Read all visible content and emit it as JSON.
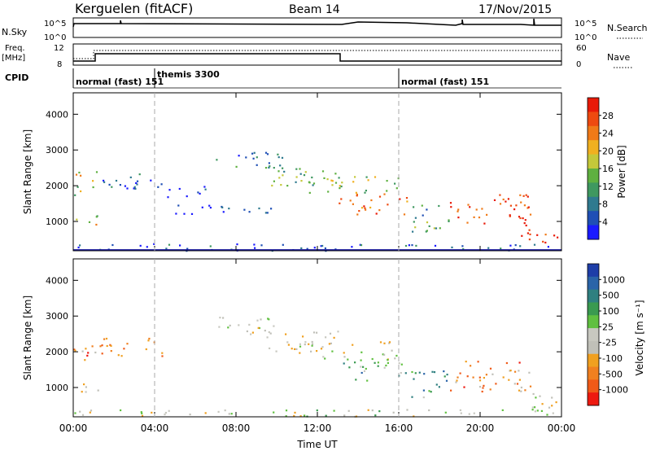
{
  "header": {
    "station": "Kerguelen (fitACF)",
    "beam": "Beam 14",
    "date": "17/Nov/2015"
  },
  "panels": {
    "nsky": {
      "label": "N.Sky",
      "ticks": [
        "10^5",
        "10^0"
      ],
      "right_label": "N.Search",
      "right_ticks": [
        "10^5",
        "10^0"
      ]
    },
    "freq": {
      "label_line1": "Freq.",
      "label_line2": "[MHz]",
      "ticks": [
        "12",
        "8"
      ],
      "right_label": "Nave",
      "right_ticks": [
        "60",
        "0"
      ]
    },
    "cpid": {
      "label": "CPID",
      "segments": [
        {
          "name": "normal (fast) 151",
          "start": 0.0,
          "end": 4.0
        },
        {
          "name": "themis 3300",
          "start": 4.0,
          "end": 16.0
        },
        {
          "name": "normal (fast) 151",
          "start": 16.0,
          "end": 24.0
        }
      ]
    }
  },
  "xaxis": {
    "label": "Time UT",
    "range": [
      0,
      24
    ],
    "tick_labels": [
      "00:00",
      "04:00",
      "08:00",
      "12:00",
      "16:00",
      "20:00",
      "00:00"
    ],
    "tick_hours": [
      0,
      4,
      8,
      12,
      16,
      20,
      24
    ],
    "dashed_markers": [
      4,
      16
    ]
  },
  "chart_data": [
    {
      "type": "heatmap",
      "name": "Power",
      "ylabel": "Slant Range [km]",
      "xlabel": "",
      "ylim": [
        180,
        4600
      ],
      "yticks": [
        1000,
        2000,
        3000,
        4000
      ],
      "colorbar": {
        "label": "Power [dB]",
        "ticks": [
          4,
          8,
          12,
          16,
          20,
          24,
          28
        ],
        "colors": [
          "#1a1aff",
          "#1f4fb5",
          "#2f7a8f",
          "#3f9860",
          "#5fb040",
          "#c4c83a",
          "#f0b020",
          "#f07a18",
          "#ee4a10",
          "#e81a08"
        ]
      },
      "echo_bands": [
        {
          "t0": 0.0,
          "t1": 1.2,
          "r0": 1750,
          "r1": 2450,
          "level": 0.55
        },
        {
          "t0": 0.0,
          "t1": 1.2,
          "r0": 800,
          "r1": 1200,
          "level": 0.55
        },
        {
          "t0": 1.0,
          "t1": 4.5,
          "r0": 1900,
          "r1": 2400,
          "level": 0.15
        },
        {
          "t0": 4.5,
          "t1": 7.0,
          "r0": 1700,
          "r1": 2000,
          "level": 0.1
        },
        {
          "t0": 5.0,
          "t1": 10.0,
          "r0": 1200,
          "r1": 1500,
          "level": 0.1
        },
        {
          "t0": 7.0,
          "t1": 10.5,
          "r0": 2500,
          "r1": 3000,
          "level": 0.25
        },
        {
          "t0": 9.5,
          "t1": 13.0,
          "r0": 2000,
          "r1": 2600,
          "level": 0.45
        },
        {
          "t0": 11.0,
          "t1": 16.0,
          "r0": 1800,
          "r1": 2300,
          "level": 0.5
        },
        {
          "t0": 13.0,
          "t1": 16.5,
          "r0": 1200,
          "r1": 1800,
          "level": 0.8
        },
        {
          "t0": 16.5,
          "t1": 18.5,
          "r0": 700,
          "r1": 1500,
          "level": 0.35
        },
        {
          "t0": 18.5,
          "t1": 22.5,
          "r0": 900,
          "r1": 1800,
          "level": 0.85
        },
        {
          "t0": 22.0,
          "t1": 24.0,
          "r0": 400,
          "r1": 900,
          "level": 0.9
        },
        {
          "t0": 0.0,
          "t1": 24.0,
          "r0": 200,
          "r1": 400,
          "level": 0.2
        }
      ]
    },
    {
      "type": "heatmap",
      "name": "Velocity",
      "ylabel": "Slant Range [km]",
      "xlabel": "Time UT",
      "ylim": [
        180,
        4600
      ],
      "yticks": [
        1000,
        2000,
        3000,
        4000
      ],
      "colorbar": {
        "label": "Velocity [m s⁻¹]",
        "ticks": [
          1000,
          500,
          100,
          25,
          -25,
          -100,
          -500,
          -1000
        ],
        "colors": [
          "#1e3ea8",
          "#2a64a8",
          "#2f8080",
          "#3a9a50",
          "#60c040",
          "#c8c8c0",
          "#c0c0b8",
          "#f0a020",
          "#f08020",
          "#f05a18",
          "#ee1a10"
        ]
      },
      "echo_bands": [
        {
          "t0": 0.0,
          "t1": 1.2,
          "r0": 1750,
          "r1": 2450,
          "level": 0.78
        },
        {
          "t0": 0.0,
          "t1": 1.2,
          "r0": 800,
          "r1": 1200,
          "level": 0.6
        },
        {
          "t0": 1.0,
          "t1": 4.5,
          "r0": 1900,
          "r1": 2400,
          "level": 0.75
        },
        {
          "t0": 7.0,
          "t1": 10.5,
          "r0": 2500,
          "r1": 3000,
          "level": 0.55
        },
        {
          "t0": 9.5,
          "t1": 13.0,
          "r0": 2000,
          "r1": 2600,
          "level": 0.55
        },
        {
          "t0": 11.0,
          "t1": 16.0,
          "r0": 1800,
          "r1": 2300,
          "level": 0.55
        },
        {
          "t0": 13.0,
          "t1": 16.5,
          "r0": 1200,
          "r1": 1800,
          "level": 0.35
        },
        {
          "t0": 16.5,
          "t1": 18.5,
          "r0": 700,
          "r1": 1500,
          "level": 0.3
        },
        {
          "t0": 18.5,
          "t1": 22.5,
          "r0": 900,
          "r1": 1800,
          "level": 0.75
        },
        {
          "t0": 22.0,
          "t1": 24.0,
          "r0": 400,
          "r1": 900,
          "level": 0.55
        },
        {
          "t0": 0.0,
          "t1": 24.0,
          "r0": 200,
          "r1": 400,
          "level": 0.5
        }
      ]
    }
  ]
}
